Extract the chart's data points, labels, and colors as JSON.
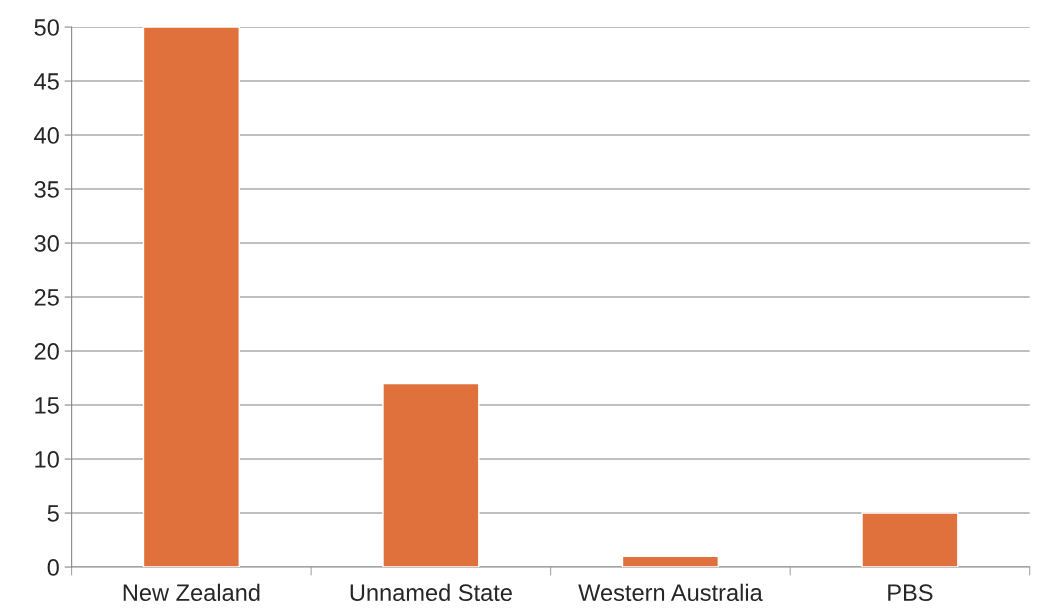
{
  "chart_data": {
    "type": "bar",
    "categories": [
      "New Zealand",
      "Unnamed State",
      "Western Australia",
      "PBS"
    ],
    "values": [
      50,
      17,
      1,
      5
    ],
    "color": "#e0703c",
    "ylim": [
      0,
      50
    ],
    "yticks": [
      0,
      5,
      10,
      15,
      20,
      25,
      30,
      35,
      40,
      45,
      50
    ],
    "grid": "y",
    "legend": false
  }
}
